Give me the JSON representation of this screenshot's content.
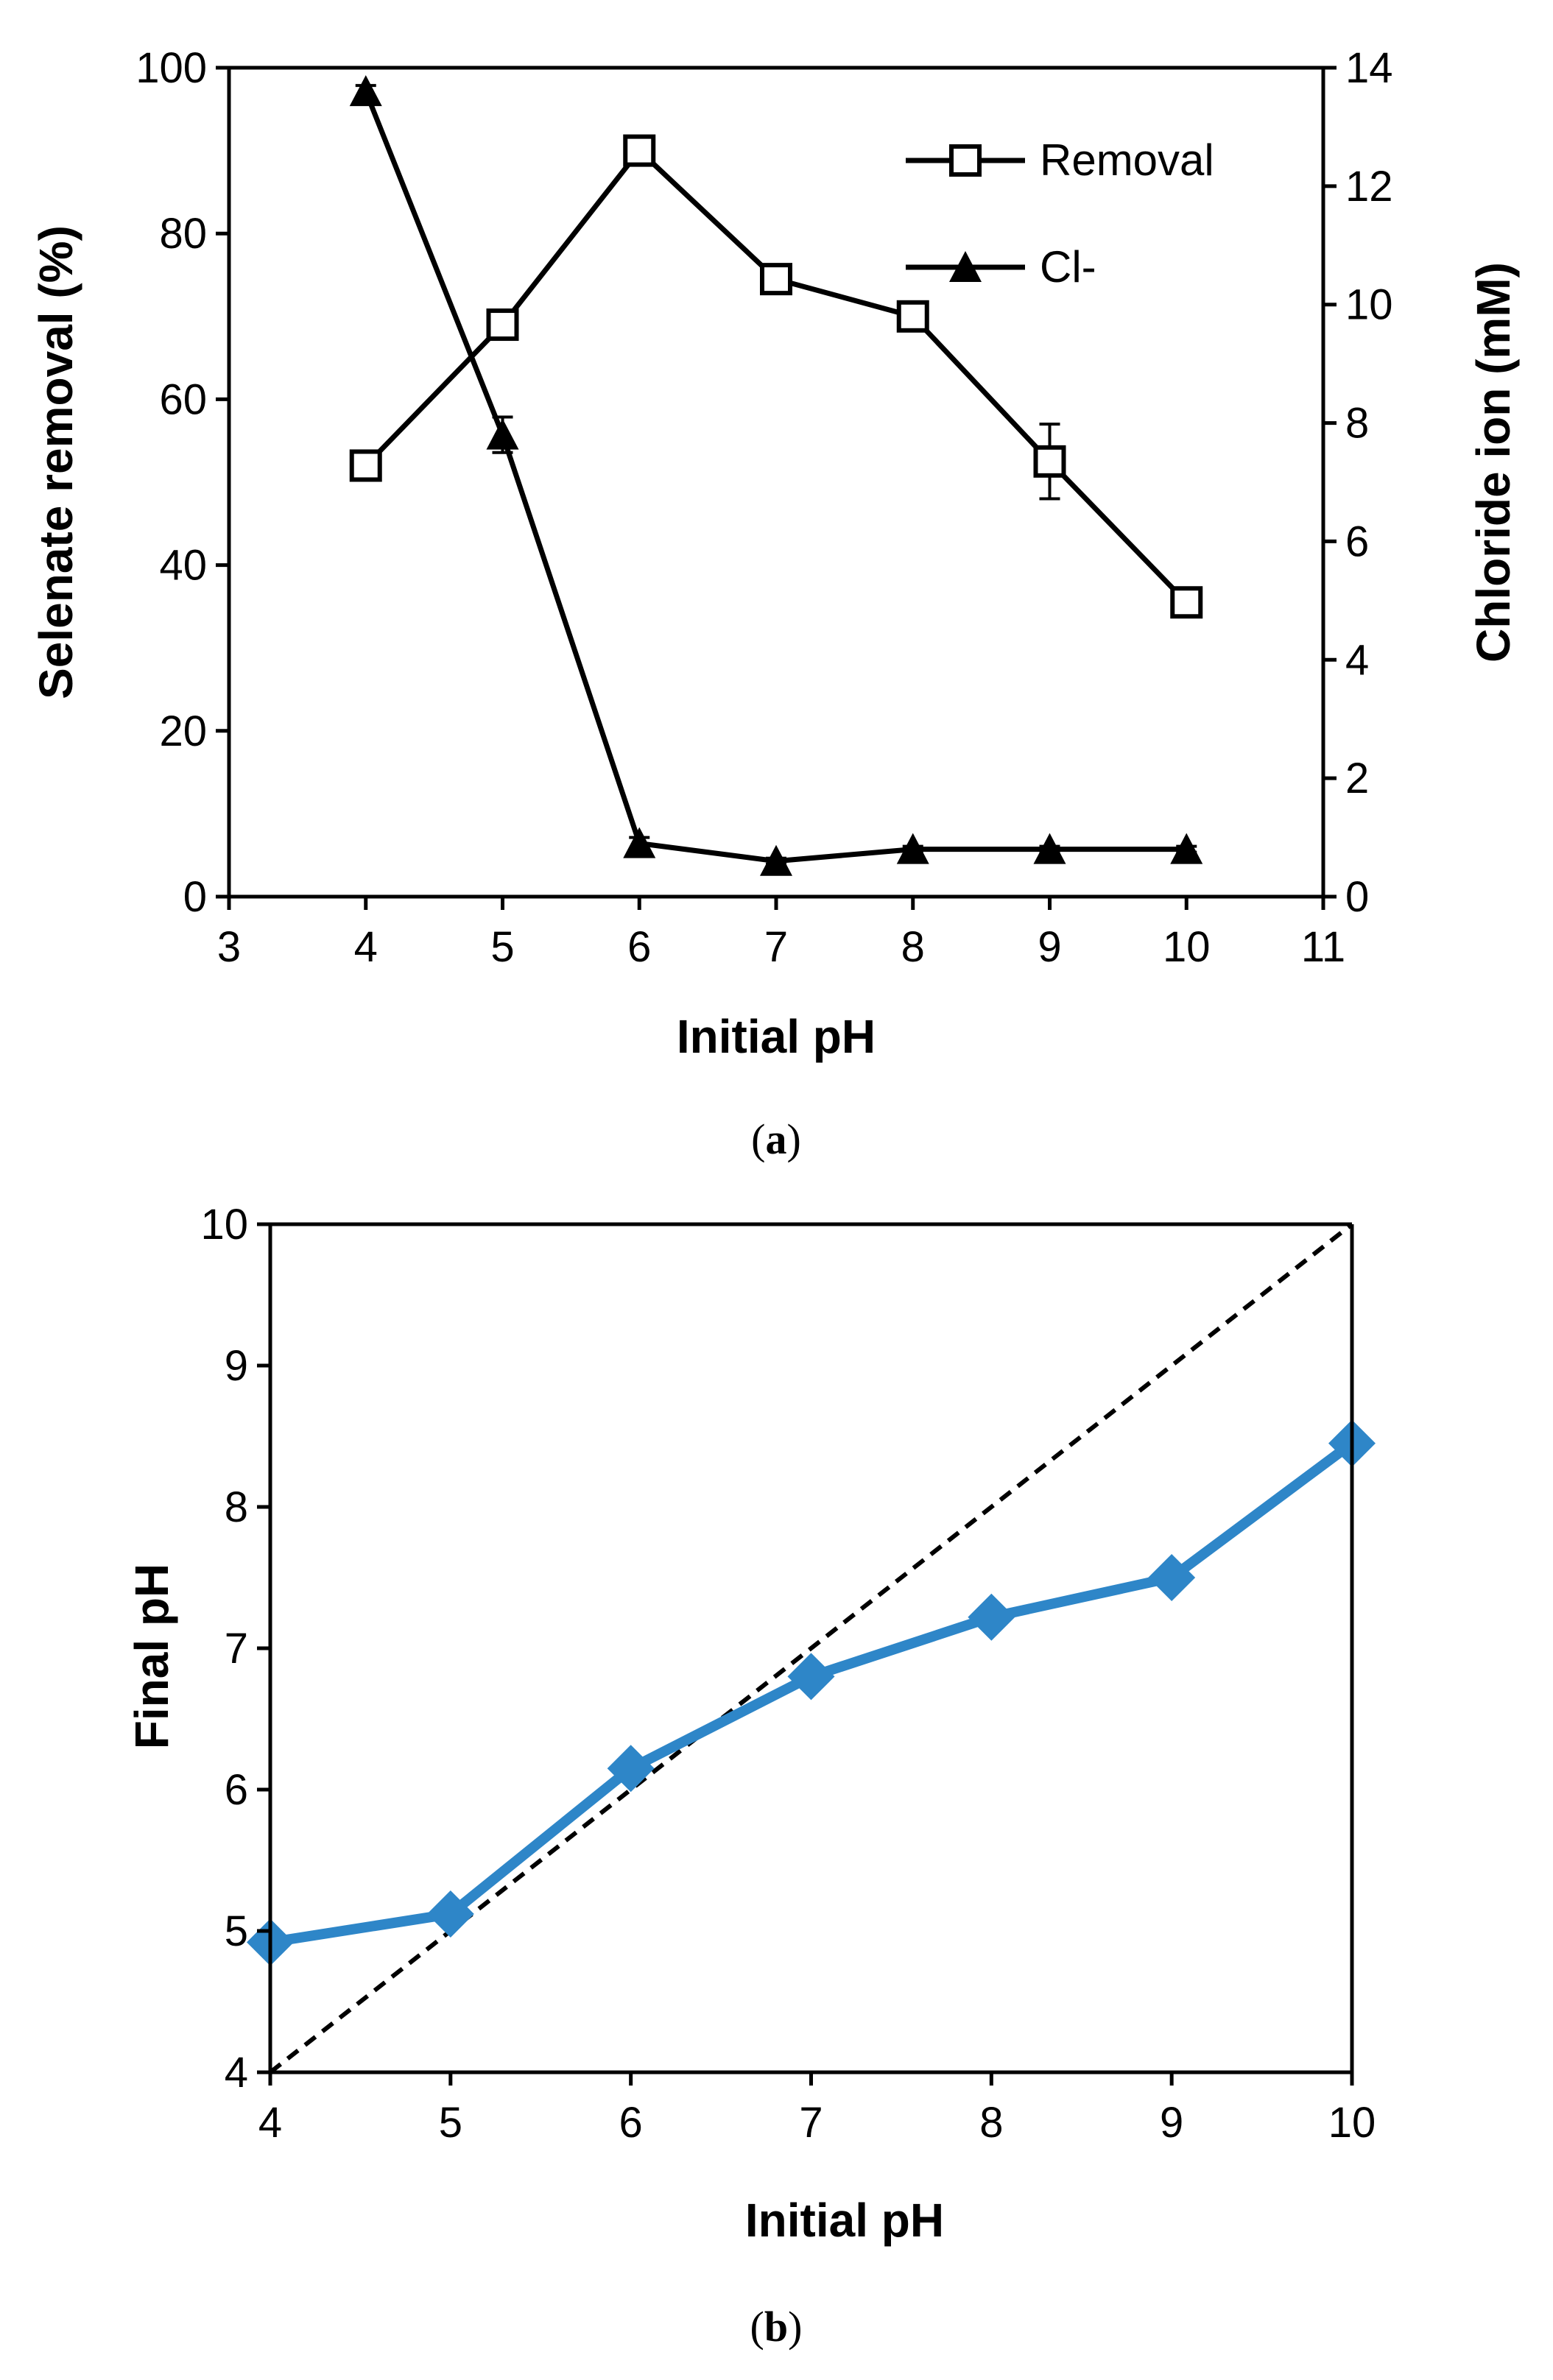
{
  "colors": {
    "axis": "#000000",
    "series_black": "#000000",
    "series_blue": "#2E86C8",
    "reference": "#000000"
  },
  "chart_data": [
    {
      "type": "line",
      "caption": "(a)",
      "caption_letter": "a",
      "x": [
        4,
        5,
        6,
        7,
        8,
        9,
        10
      ],
      "xlabel": "Initial pH",
      "ylabel": "Selenate removal (%)",
      "y2label": "Chloride ion (mM)",
      "xlim": [
        3,
        11
      ],
      "ylim": [
        0,
        100
      ],
      "y2lim": [
        0,
        14
      ],
      "xticks": [
        "3",
        "4",
        "5",
        "6",
        "7",
        "8",
        "9",
        "10",
        "11"
      ],
      "yticks": [
        "0",
        "20",
        "40",
        "60",
        "80",
        "100"
      ],
      "y2ticks": [
        "0",
        "2",
        "4",
        "6",
        "8",
        "10",
        "12",
        "14"
      ],
      "legend_position": "top-right",
      "series": [
        {
          "name": "Removal",
          "axis": "left",
          "marker": "open-square",
          "values": [
            52,
            69,
            90,
            74.5,
            70,
            52.5,
            35.5
          ],
          "error": [
            1,
            1.5,
            1.5,
            1,
            1,
            4.5,
            1
          ]
        },
        {
          "name": "Cl-",
          "axis": "right",
          "marker": "filled-triangle",
          "values": [
            13.6,
            7.8,
            0.9,
            0.6,
            0.8,
            0.8,
            0.8
          ],
          "error": [
            0.1,
            0.3,
            0.1,
            0.05,
            0.05,
            0.05,
            0.05
          ]
        }
      ]
    },
    {
      "type": "line",
      "caption": "(b)",
      "caption_letter": "b",
      "x": [
        4,
        5,
        6,
        7,
        8,
        9,
        10
      ],
      "xlabel": "Initial pH",
      "ylabel": "Final pH",
      "xlim": [
        4,
        10
      ],
      "ylim": [
        4,
        10
      ],
      "xticks": [
        "4",
        "5",
        "6",
        "7",
        "8",
        "9",
        "10"
      ],
      "yticks": [
        "4",
        "5",
        "6",
        "7",
        "8",
        "9",
        "10"
      ],
      "series": [
        {
          "name": "Final pH",
          "marker": "filled-diamond",
          "values": [
            4.92,
            5.12,
            6.15,
            6.8,
            7.22,
            7.5,
            8.45
          ]
        }
      ],
      "reference_line": {
        "style": "dashed",
        "from": [
          4,
          4
        ],
        "to": [
          10,
          10
        ]
      }
    }
  ]
}
